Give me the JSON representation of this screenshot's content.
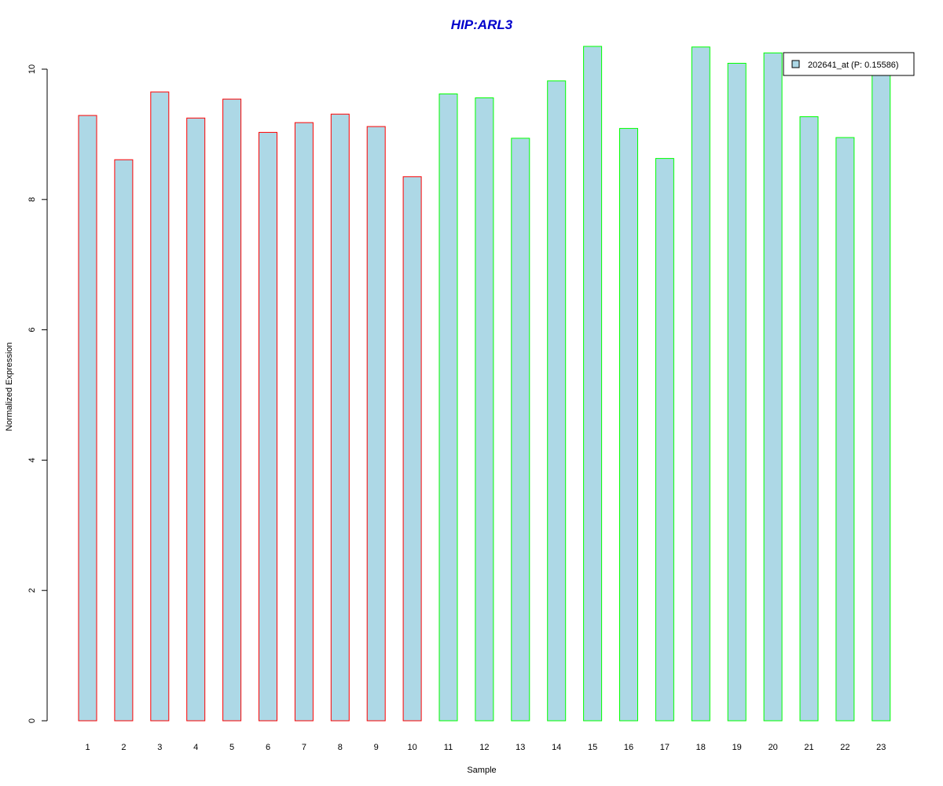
{
  "chart_data": {
    "type": "bar",
    "title": "HIP:ARL3",
    "xlabel": "Sample",
    "ylabel": "Normalized Expression",
    "ylim": [
      0,
      10
    ],
    "yticks": [
      0,
      2,
      4,
      6,
      8,
      10
    ],
    "categories": [
      "1",
      "2",
      "3",
      "4",
      "5",
      "6",
      "7",
      "8",
      "9",
      "10",
      "11",
      "12",
      "13",
      "14",
      "15",
      "16",
      "17",
      "18",
      "19",
      "20",
      "21",
      "22",
      "23"
    ],
    "series": [
      {
        "name": "202641_at (P: 0.15586)",
        "values": [
          9.29,
          8.61,
          9.65,
          9.25,
          9.54,
          9.03,
          9.18,
          9.31,
          9.12,
          8.35,
          9.62,
          9.56,
          8.94,
          9.82,
          10.35,
          9.09,
          8.63,
          10.34,
          10.09,
          10.25,
          9.27,
          8.95,
          9.92
        ]
      }
    ],
    "bar_fill": "#add8e6",
    "group_colors": [
      "#ff0000",
      "#00ff00"
    ],
    "group_assignment": [
      0,
      0,
      0,
      0,
      0,
      0,
      0,
      0,
      0,
      0,
      1,
      1,
      1,
      1,
      1,
      1,
      1,
      1,
      1,
      1,
      1,
      1,
      1
    ],
    "title_color": "#0000cc",
    "legend": {
      "placement": "top-right",
      "label": "202641_at (P: 0.15586)",
      "swatch_color": "#add8e6"
    },
    "grid": false
  }
}
